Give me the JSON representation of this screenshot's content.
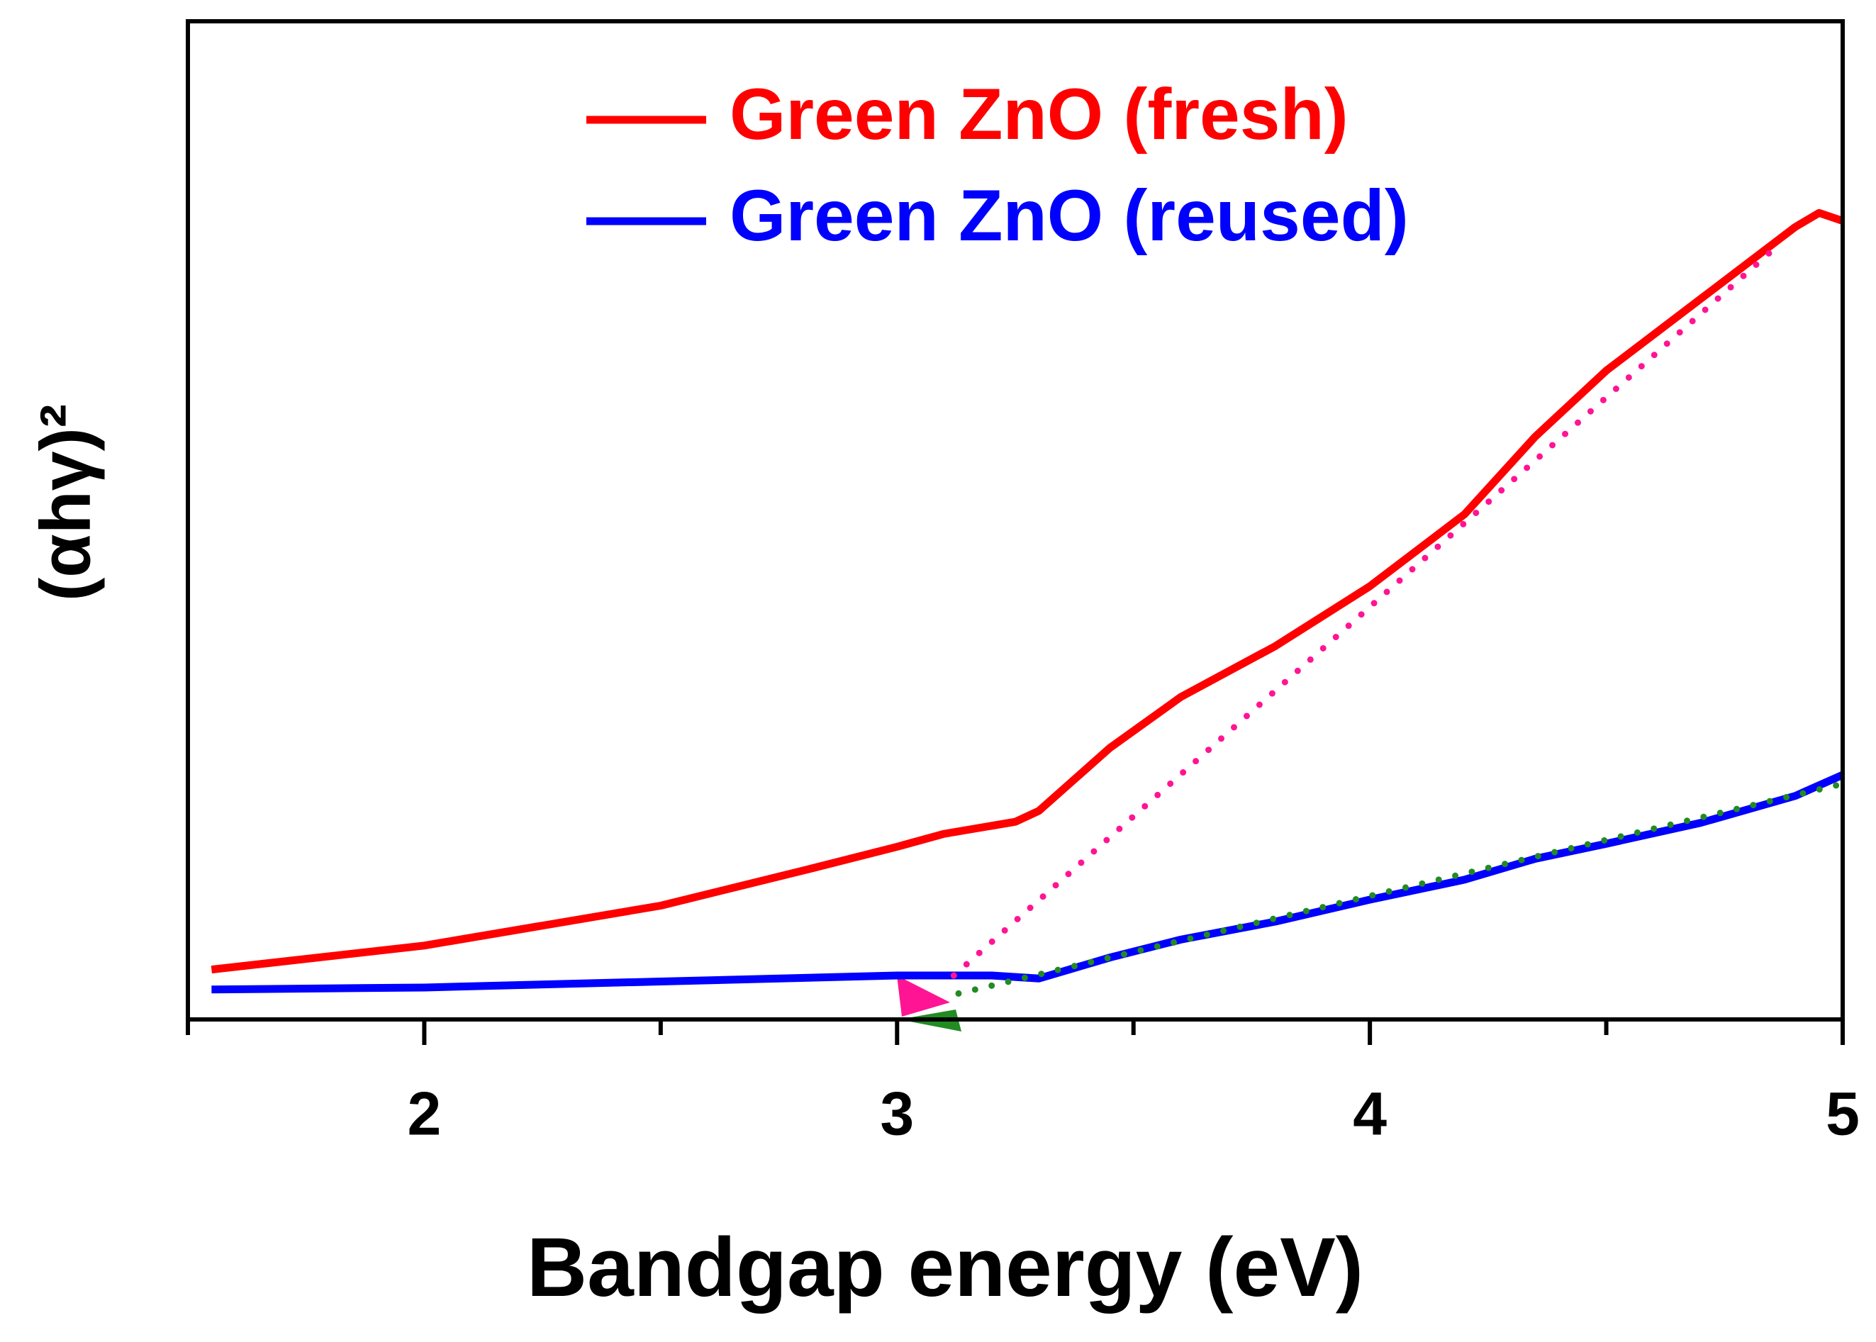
{
  "chart_data": {
    "type": "line",
    "x_label": "Bandgap energy (eV)",
    "y_label": "(αhγ)²",
    "xlim": [
      1.5,
      5
    ],
    "ylim": [
      0,
      1
    ],
    "xticks": [
      2,
      3,
      4,
      5
    ],
    "xminor_ticks": [
      1.5,
      2.5,
      3.5,
      4.5
    ],
    "legend": "upper center",
    "series": [
      {
        "name": "Green ZnO (fresh)",
        "color": "#ff0000",
        "x": [
          1.55,
          2.0,
          2.5,
          2.8,
          3.0,
          3.1,
          3.25,
          3.3,
          3.45,
          3.6,
          3.8,
          4.0,
          4.2,
          4.35,
          4.5,
          4.7,
          4.9,
          4.95,
          5.0
        ],
        "values": [
          0.05,
          0.074,
          0.114,
          0.149,
          0.173,
          0.186,
          0.198,
          0.209,
          0.272,
          0.323,
          0.374,
          0.434,
          0.506,
          0.584,
          0.65,
          0.722,
          0.794,
          0.808,
          0.8
        ]
      },
      {
        "name": "Green ZnO (reused)",
        "color": "#0000ff",
        "x": [
          1.55,
          2.0,
          2.5,
          3.0,
          3.2,
          3.3,
          3.45,
          3.6,
          3.8,
          4.0,
          4.2,
          4.35,
          4.5,
          4.7,
          4.9,
          5.0
        ],
        "values": [
          0.03,
          0.032,
          0.038,
          0.044,
          0.044,
          0.041,
          0.062,
          0.08,
          0.098,
          0.12,
          0.14,
          0.161,
          0.176,
          0.197,
          0.224,
          0.245
        ]
      }
    ],
    "fit_lines": [
      {
        "color": "#ff1493",
        "x": [
          3.12,
          4.85
        ],
        "values": [
          0.044,
          0.77
        ]
      },
      {
        "color": "#228b22",
        "x": [
          3.13,
          5.0
        ],
        "values": [
          0.026,
          0.236
        ]
      }
    ]
  }
}
